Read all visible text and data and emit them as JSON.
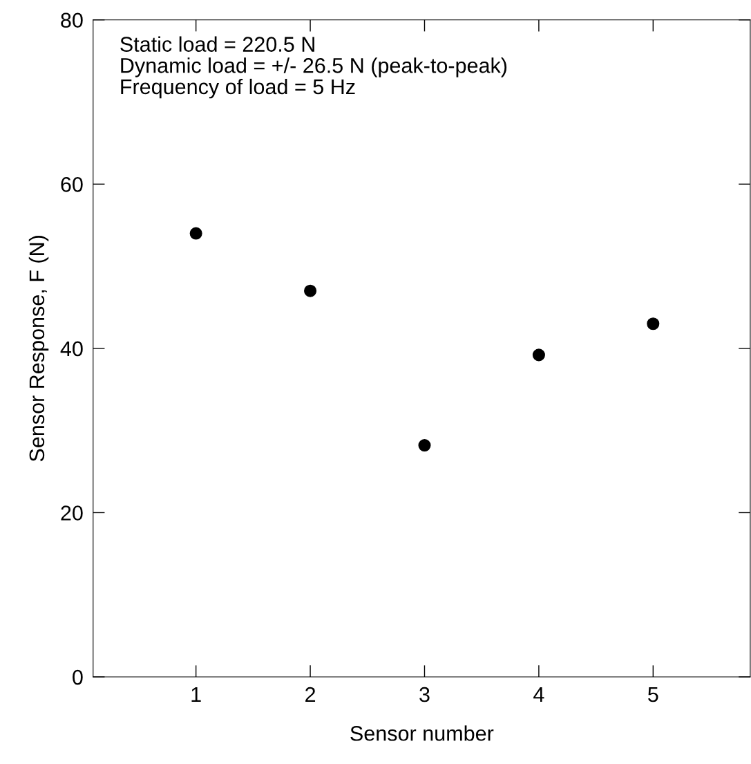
{
  "chart_data": {
    "type": "scatter",
    "xlabel": "Sensor number",
    "ylabel": "Sensor Response, F (N)",
    "x": [
      1,
      2,
      3,
      4,
      5
    ],
    "series": [
      {
        "color": "#000000",
        "values": [
          54,
          47,
          28.2,
          39.2,
          43
        ]
      }
    ],
    "marker": "circle",
    "xlim": [
      0.1,
      5.85
    ],
    "xticks": [
      1,
      2,
      3,
      4,
      5
    ],
    "ylim": [
      0,
      80
    ],
    "yticks": [
      0,
      20,
      40,
      60,
      80
    ],
    "grid": false,
    "legend": false,
    "annotations": [
      "Static load = 220.5 N",
      "Dynamic load = +/- 26.5 N (peak-to-peak)",
      "Frequency of load = 5 Hz"
    ]
  }
}
